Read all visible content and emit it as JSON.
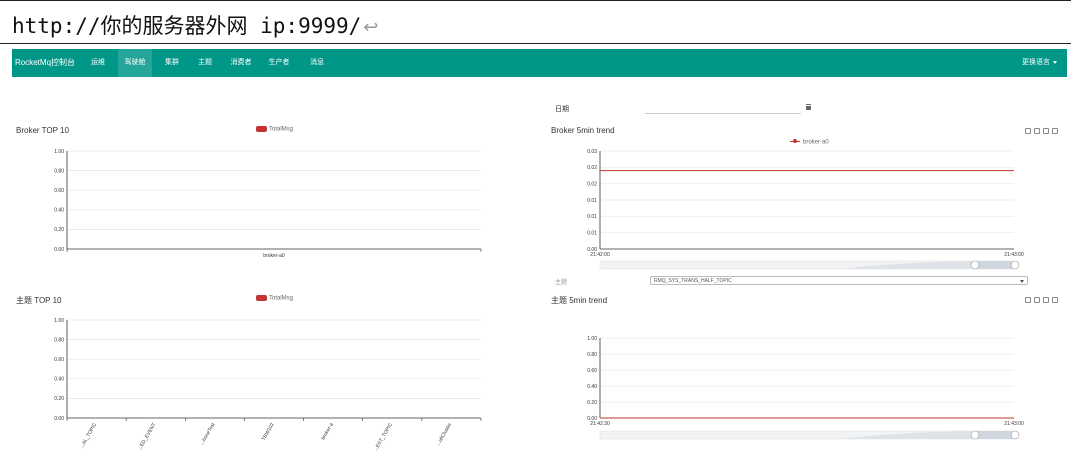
{
  "url_bar": {
    "text": "http://你的服务器外网 ip:9999/",
    "return_glyph": "↩"
  },
  "nav": {
    "brand": "RocketMq控制台",
    "items": [
      {
        "label": "运维",
        "active": false
      },
      {
        "label": "驾驶舱",
        "active": true
      },
      {
        "label": "集群",
        "active": false
      },
      {
        "label": "主题",
        "active": false
      },
      {
        "label": "消费者",
        "active": false
      },
      {
        "label": "生产者",
        "active": false
      },
      {
        "label": "消息",
        "active": false
      }
    ],
    "language": "更换语言"
  },
  "date": {
    "label": "日期",
    "value": ""
  },
  "broker_top10": {
    "title": "Broker TOP 10",
    "legend": "TotalMsg"
  },
  "broker_trend": {
    "title": "Broker 5min trend",
    "legend": "broker-a0"
  },
  "topic_top10": {
    "title": "主题 TOP 10",
    "legend": "TotalMsg"
  },
  "topic_trend": {
    "title": "主题 5min trend"
  },
  "topic_selector": {
    "label": "主题",
    "selected": "RMQ_SYS_TRANS_HALF_TOPIC"
  },
  "colors": {
    "nav": "#009688",
    "series": "#c23531"
  },
  "chart_data": [
    {
      "type": "bar",
      "title": "Broker TOP 10",
      "categories": [
        "broker-a0"
      ],
      "series": [
        {
          "name": "TotalMsg",
          "values": [
            0
          ]
        }
      ],
      "y_ticks": [
        "1.00",
        "0.80",
        "0.60",
        "0.40",
        "0.20",
        "0.00"
      ],
      "ylim": [
        0,
        1
      ],
      "legend": "top-center",
      "grid": true
    },
    {
      "type": "line",
      "title": "Broker 5min trend",
      "x": [
        "21:42:00",
        "21:43:00"
      ],
      "series": [
        {
          "name": "broker-a0",
          "values": [
            0.024,
            0.024
          ]
        }
      ],
      "y_ticks": [
        "0.03",
        "0.02",
        "0.02",
        "0.01",
        "0.01",
        "0.01",
        "0.00"
      ],
      "ylim": [
        0,
        0.03
      ],
      "legend": "top-center",
      "grid": true
    },
    {
      "type": "bar",
      "title": "主题 TOP 10",
      "categories": [
        "...AL_TOPIC",
        "...ED_EVENT",
        "...honeTest",
        "TBW102",
        "broker-a",
        "...EST_TOPIC",
        "...ultCluster"
      ],
      "series": [
        {
          "name": "TotalMsg",
          "values": [
            0,
            0,
            0,
            0,
            0,
            0,
            0
          ]
        }
      ],
      "y_ticks": [
        "1.00",
        "0.80",
        "0.60",
        "0.40",
        "0.20",
        "0.00"
      ],
      "ylim": [
        0,
        1
      ],
      "legend": "top-center",
      "grid": true
    },
    {
      "type": "line",
      "title": "主题 5min trend",
      "x": [
        "21:42:30",
        "21:43:00"
      ],
      "series": [
        {
          "values": [
            0,
            0
          ]
        }
      ],
      "y_ticks": [
        "1.00",
        "0.80",
        "0.60",
        "0.40",
        "0.20",
        "0.00"
      ],
      "ylim": [
        0,
        1
      ],
      "grid": true
    }
  ]
}
